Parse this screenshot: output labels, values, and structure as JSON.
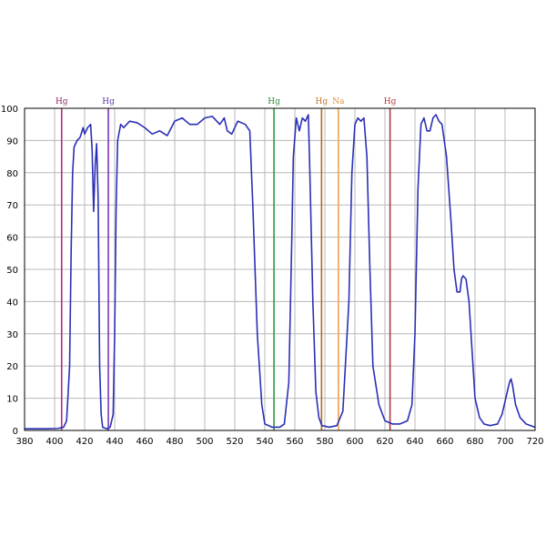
{
  "chart_data": {
    "type": "line",
    "title": "",
    "xlabel": "",
    "ylabel": "",
    "xlim": [
      380,
      720
    ],
    "ylim": [
      0,
      100
    ],
    "grid": true,
    "x_ticks": [
      "380",
      "400",
      "420",
      "440",
      "460",
      "480",
      "500",
      "520",
      "540",
      "560",
      "580",
      "600",
      "620",
      "640",
      "660",
      "680",
      "700",
      "720"
    ],
    "y_ticks": [
      "0",
      "10",
      "20",
      "30",
      "40",
      "50",
      "60",
      "70",
      "80",
      "90",
      "100"
    ],
    "series": [
      {
        "color": "#2a2fb5",
        "points": [
          [
            380,
            0.5
          ],
          [
            395,
            0.5
          ],
          [
            402,
            0.6
          ],
          [
            406,
            1
          ],
          [
            408,
            3
          ],
          [
            410,
            20
          ],
          [
            411,
            55
          ],
          [
            412,
            80
          ],
          [
            413,
            88
          ],
          [
            415,
            90
          ],
          [
            417,
            91
          ],
          [
            419,
            94
          ],
          [
            420,
            92
          ],
          [
            422,
            94
          ],
          [
            424,
            95
          ],
          [
            425,
            87
          ],
          [
            426,
            68
          ],
          [
            427,
            82
          ],
          [
            428,
            89
          ],
          [
            429,
            72
          ],
          [
            430,
            20
          ],
          [
            431,
            5
          ],
          [
            432,
            1
          ],
          [
            435,
            0.5
          ],
          [
            437,
            1
          ],
          [
            439,
            5
          ],
          [
            440,
            30
          ],
          [
            441,
            70
          ],
          [
            442,
            90
          ],
          [
            444,
            95
          ],
          [
            446,
            94
          ],
          [
            448,
            95
          ],
          [
            450,
            96
          ],
          [
            455,
            95.5
          ],
          [
            460,
            94
          ],
          [
            465,
            92
          ],
          [
            470,
            93
          ],
          [
            475,
            91.5
          ],
          [
            480,
            96
          ],
          [
            485,
            97
          ],
          [
            490,
            95
          ],
          [
            495,
            95
          ],
          [
            500,
            97
          ],
          [
            505,
            97.5
          ],
          [
            510,
            95
          ],
          [
            513,
            97
          ],
          [
            515,
            93
          ],
          [
            518,
            92
          ],
          [
            522,
            96
          ],
          [
            527,
            95
          ],
          [
            530,
            93
          ],
          [
            532,
            70
          ],
          [
            535,
            30
          ],
          [
            538,
            8
          ],
          [
            540,
            2
          ],
          [
            545,
            1
          ],
          [
            550,
            1
          ],
          [
            553,
            2
          ],
          [
            556,
            15
          ],
          [
            558,
            60
          ],
          [
            559,
            85
          ],
          [
            561,
            97
          ],
          [
            563,
            93
          ],
          [
            565,
            97
          ],
          [
            567,
            96
          ],
          [
            569,
            98
          ],
          [
            570,
            80
          ],
          [
            572,
            40
          ],
          [
            574,
            12
          ],
          [
            576,
            4
          ],
          [
            578,
            1.5
          ],
          [
            583,
            1
          ],
          [
            588,
            1.5
          ],
          [
            592,
            6
          ],
          [
            596,
            40
          ],
          [
            598,
            80
          ],
          [
            600,
            95
          ],
          [
            602,
            97
          ],
          [
            604,
            96
          ],
          [
            606,
            97
          ],
          [
            608,
            85
          ],
          [
            610,
            50
          ],
          [
            612,
            20
          ],
          [
            616,
            8
          ],
          [
            620,
            3
          ],
          [
            625,
            2
          ],
          [
            630,
            2
          ],
          [
            635,
            3
          ],
          [
            638,
            8
          ],
          [
            640,
            30
          ],
          [
            642,
            75
          ],
          [
            644,
            95
          ],
          [
            646,
            97
          ],
          [
            648,
            93
          ],
          [
            650,
            93
          ],
          [
            652,
            97
          ],
          [
            654,
            98
          ],
          [
            656,
            96
          ],
          [
            658,
            95
          ],
          [
            661,
            85
          ],
          [
            664,
            65
          ],
          [
            666,
            50
          ],
          [
            668,
            43
          ],
          [
            670,
            43
          ],
          [
            671,
            47
          ],
          [
            672,
            48
          ],
          [
            674,
            47
          ],
          [
            676,
            40
          ],
          [
            678,
            25
          ],
          [
            680,
            10
          ],
          [
            683,
            4
          ],
          [
            686,
            2
          ],
          [
            690,
            1.5
          ],
          [
            695,
            2
          ],
          [
            698,
            5
          ],
          [
            700,
            9
          ],
          [
            702,
            13
          ],
          [
            703,
            15
          ],
          [
            704,
            16
          ],
          [
            705,
            14
          ],
          [
            707,
            8
          ],
          [
            710,
            4
          ],
          [
            714,
            2
          ],
          [
            720,
            1
          ]
        ]
      }
    ],
    "reference_lines": [
      {
        "x": 404.7,
        "label": "Hg",
        "color": "#b0307a",
        "label_color": "#8a2a6a"
      },
      {
        "x": 435.8,
        "label": "Hg",
        "color": "#7a35b5",
        "label_color": "#5a3aa8"
      },
      {
        "x": 546.1,
        "label": "Hg",
        "color": "#2e9a3e",
        "label_color": "#2e8a3a"
      },
      {
        "x": 577.8,
        "label": "Hg",
        "color": "#b06a20",
        "label_color": "#c47a30"
      },
      {
        "x": 589.0,
        "label": "Na",
        "color": "#f0a050",
        "label_color": "#e09040"
      },
      {
        "x": 623.4,
        "label": "Hg",
        "color": "#b03a3a",
        "label_color": "#b03a3a"
      }
    ]
  }
}
